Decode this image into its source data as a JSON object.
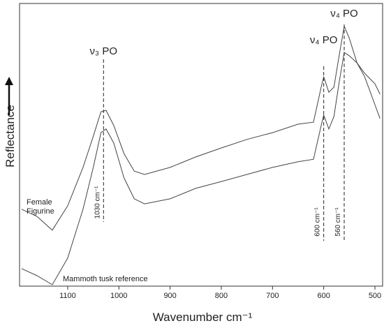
{
  "chart_data": {
    "type": "line",
    "x_label": "Wavenumber cm⁻¹",
    "y_label": "Reflectance",
    "x": [
      1190,
      1160,
      1130,
      1100,
      1070,
      1050,
      1035,
      1025,
      1010,
      990,
      970,
      950,
      900,
      850,
      800,
      750,
      700,
      650,
      620,
      605,
      600,
      590,
      580,
      570,
      560,
      550,
      535,
      520,
      500,
      490
    ],
    "series": [
      {
        "name": "Female Figurine",
        "color": "#444444",
        "values": [
          27.2,
          24.7,
          19.8,
          28.4,
          42,
          53,
          61.7,
          62.2,
          56.8,
          46.9,
          40.7,
          39.5,
          42,
          45.7,
          48.9,
          51.9,
          54.3,
          57.3,
          58,
          70.4,
          74,
          68.6,
          70.4,
          81.5,
          91.9,
          87.7,
          79,
          75.3,
          71.6,
          67.9
        ]
      },
      {
        "name": "Mammoth tusk reference",
        "color": "#444444",
        "values": [
          6.2,
          3.7,
          0.5,
          9.9,
          27.2,
          42,
          54.3,
          55.6,
          50.6,
          38.3,
          30.9,
          29.1,
          30.9,
          34.6,
          37,
          39.5,
          42,
          44,
          44.9,
          56.8,
          60.5,
          55.6,
          60,
          72,
          82.7,
          81.5,
          79,
          74.1,
          64.2,
          59.3
        ]
      }
    ],
    "xlim": [
      1194,
      485
    ],
    "ylim": [
      0,
      100
    ],
    "xticks": [
      1100,
      1000,
      900,
      800,
      700,
      600,
      500
    ],
    "annotations": [
      {
        "label": "ν₃ PO",
        "x": 1030,
        "line_label": "1030 cm⁻¹"
      },
      {
        "label": "ν₄ PO",
        "x": 600,
        "line_label": "600 cm⁻¹"
      },
      {
        "label": "ν₄ PO",
        "x": 560,
        "line_label": "560 cm⁻¹"
      }
    ]
  }
}
